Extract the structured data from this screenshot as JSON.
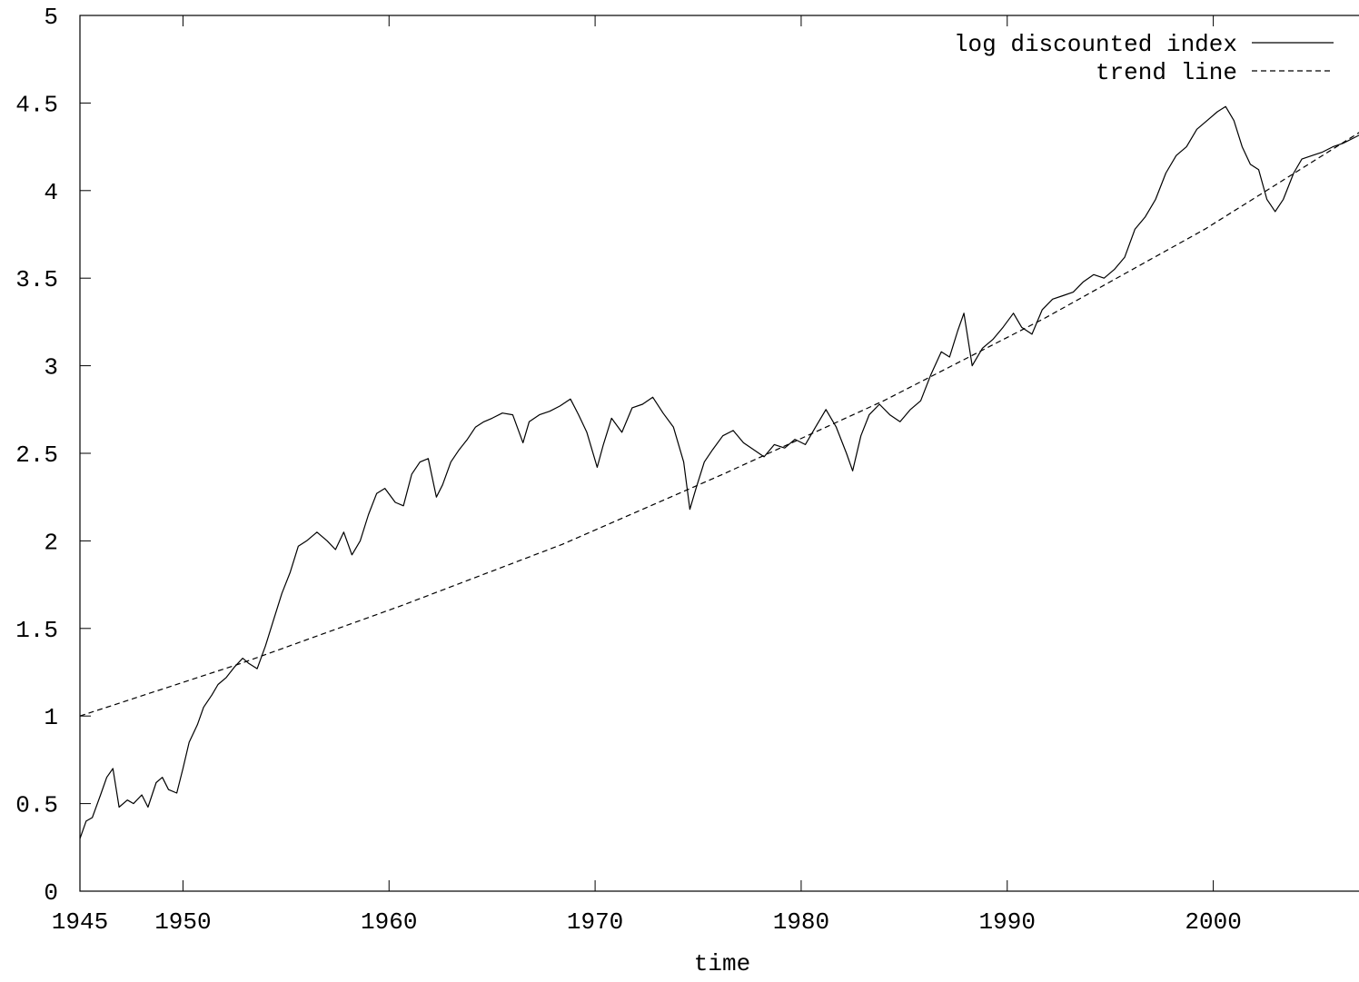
{
  "chart_data": {
    "type": "line",
    "title": "",
    "xlabel": "time",
    "ylabel": "",
    "xlim": [
      1945,
      2007.6
    ],
    "ylim": [
      0,
      5
    ],
    "x_ticks": [
      1945,
      1950,
      1960,
      1970,
      1980,
      1990,
      2000
    ],
    "y_ticks": [
      0,
      0.5,
      1,
      1.5,
      2,
      2.5,
      3,
      3.5,
      4,
      4.5,
      5
    ],
    "x_tick_labels": [
      "1945",
      "1950",
      "1960",
      "1970",
      "1980",
      "1990",
      "2000"
    ],
    "y_tick_labels": [
      "0",
      "0.5",
      "1",
      "1.5",
      "2",
      "2.5",
      "3",
      "3.5",
      "4",
      "4.5",
      "5"
    ],
    "legend_position": "top-right",
    "grid": false,
    "series": [
      {
        "name": "log discounted index",
        "style": "solid",
        "color": "#000000",
        "x": [
          1945.0,
          1945.3,
          1945.6,
          1946.0,
          1946.3,
          1946.6,
          1946.9,
          1947.3,
          1947.6,
          1948.0,
          1948.3,
          1948.7,
          1949.0,
          1949.3,
          1949.7,
          1950.0,
          1950.3,
          1950.7,
          1951.0,
          1951.4,
          1951.7,
          1952.1,
          1952.5,
          1952.9,
          1953.2,
          1953.6,
          1954.0,
          1954.4,
          1954.8,
          1955.2,
          1955.6,
          1956.0,
          1956.5,
          1957.0,
          1957.4,
          1957.8,
          1958.2,
          1958.6,
          1959.0,
          1959.4,
          1959.8,
          1960.3,
          1960.7,
          1961.1,
          1961.5,
          1961.9,
          1962.3,
          1962.6,
          1963.0,
          1963.4,
          1963.8,
          1964.2,
          1964.6,
          1965.0,
          1965.5,
          1966.0,
          1966.5,
          1966.8,
          1967.3,
          1967.8,
          1968.3,
          1968.8,
          1969.2,
          1969.6,
          1970.1,
          1970.4,
          1970.8,
          1971.3,
          1971.8,
          1972.3,
          1972.8,
          1973.3,
          1973.8,
          1974.3,
          1974.6,
          1974.9,
          1975.3,
          1975.7,
          1976.2,
          1976.7,
          1977.2,
          1977.7,
          1978.2,
          1978.7,
          1979.2,
          1979.7,
          1980.2,
          1980.7,
          1981.2,
          1981.7,
          1982.2,
          1982.5,
          1982.9,
          1983.3,
          1983.8,
          1984.3,
          1984.8,
          1985.3,
          1985.8,
          1986.3,
          1986.8,
          1987.2,
          1987.6,
          1987.9,
          1988.3,
          1988.8,
          1989.3,
          1989.8,
          1990.3,
          1990.7,
          1991.2,
          1991.7,
          1992.2,
          1992.7,
          1993.2,
          1993.7,
          1994.2,
          1994.7,
          1995.2,
          1995.7,
          1996.2,
          1996.7,
          1997.2,
          1997.7,
          1998.2,
          1998.7,
          1999.2,
          1999.7,
          2000.2,
          2000.6,
          2001.0,
          2001.4,
          2001.8,
          2002.2,
          2002.6,
          2003.0,
          2003.4,
          2003.9,
          2004.3,
          2004.8,
          2005.3,
          2005.8,
          2006.3,
          2006.8,
          2007.3,
          2007.6
        ],
        "y": [
          0.3,
          0.4,
          0.42,
          0.55,
          0.65,
          0.7,
          0.48,
          0.52,
          0.5,
          0.55,
          0.48,
          0.62,
          0.65,
          0.58,
          0.56,
          0.7,
          0.85,
          0.95,
          1.05,
          1.12,
          1.18,
          1.22,
          1.28,
          1.33,
          1.3,
          1.27,
          1.4,
          1.55,
          1.7,
          1.82,
          1.97,
          2.0,
          2.05,
          2.0,
          1.95,
          2.05,
          1.92,
          2.0,
          2.15,
          2.27,
          2.3,
          2.22,
          2.2,
          2.38,
          2.45,
          2.47,
          2.25,
          2.32,
          2.45,
          2.52,
          2.58,
          2.65,
          2.68,
          2.7,
          2.73,
          2.72,
          2.56,
          2.68,
          2.72,
          2.74,
          2.77,
          2.81,
          2.72,
          2.62,
          2.42,
          2.55,
          2.7,
          2.62,
          2.76,
          2.78,
          2.82,
          2.73,
          2.65,
          2.45,
          2.18,
          2.3,
          2.45,
          2.52,
          2.6,
          2.63,
          2.56,
          2.52,
          2.48,
          2.55,
          2.53,
          2.58,
          2.55,
          2.65,
          2.75,
          2.65,
          2.5,
          2.4,
          2.6,
          2.72,
          2.78,
          2.72,
          2.68,
          2.75,
          2.8,
          2.95,
          3.08,
          3.05,
          3.2,
          3.3,
          3.0,
          3.1,
          3.15,
          3.22,
          3.3,
          3.22,
          3.18,
          3.32,
          3.38,
          3.4,
          3.42,
          3.48,
          3.52,
          3.5,
          3.55,
          3.62,
          3.78,
          3.85,
          3.95,
          4.1,
          4.2,
          4.25,
          4.35,
          4.4,
          4.45,
          4.48,
          4.4,
          4.25,
          4.15,
          4.12,
          3.95,
          3.88,
          3.95,
          4.1,
          4.18,
          4.2,
          4.22,
          4.25,
          4.27,
          4.3,
          4.33,
          4.37
        ]
      },
      {
        "name": "trend line",
        "style": "dashed",
        "color": "#000000",
        "x": [
          1945.0,
          1952.8,
          1960.6,
          1968.4,
          1976.2,
          1984.0,
          1991.8,
          1999.6,
          2007.6
        ],
        "y": [
          1.0,
          1.3,
          1.63,
          1.98,
          2.38,
          2.8,
          3.27,
          3.78,
          4.37
        ]
      }
    ]
  }
}
